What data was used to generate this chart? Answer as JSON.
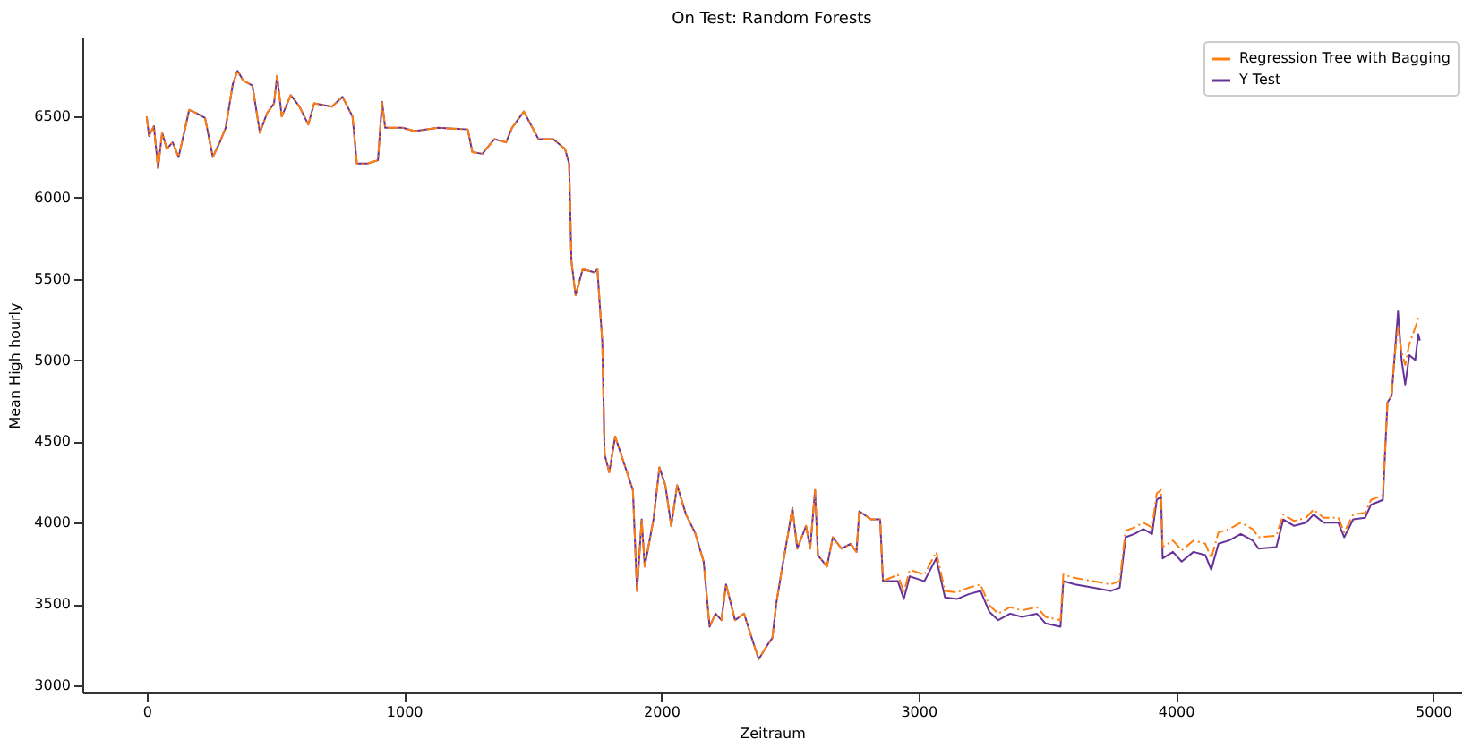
{
  "chart_data": {
    "type": "line",
    "title": "On Test: Random Forests",
    "xlabel": "Zeitraum",
    "ylabel": "Mean High hourly",
    "x": [
      0,
      9,
      28,
      44,
      60,
      78,
      101,
      124,
      147,
      165,
      193,
      227,
      257,
      284,
      307,
      335,
      353,
      376,
      411,
      440,
      468,
      495,
      507,
      525,
      560,
      594,
      628,
      651,
      720,
      761,
      800,
      817,
      858,
      899,
      915,
      927,
      995,
      1041,
      1133,
      1248,
      1266,
      1305,
      1351,
      1397,
      1420,
      1466,
      1523,
      1580,
      1626,
      1642,
      1651,
      1667,
      1695,
      1741,
      1752,
      1771,
      1780,
      1798,
      1821,
      1844,
      1867,
      1890,
      1906,
      1924,
      1936,
      1970,
      1993,
      2016,
      2039,
      2062,
      2096,
      2131,
      2165,
      2188,
      2211,
      2234,
      2252,
      2287,
      2322,
      2356,
      2379,
      2414,
      2432,
      2448,
      2471,
      2494,
      2510,
      2529,
      2563,
      2579,
      2598,
      2609,
      2644,
      2667,
      2701,
      2736,
      2759,
      2770,
      2816,
      2851,
      2862,
      2920,
      2943,
      2966,
      3023,
      3069,
      3103,
      3149,
      3195,
      3241,
      3276,
      3310,
      3356,
      3402,
      3460,
      3494,
      3552,
      3563,
      3609,
      3678,
      3747,
      3782,
      3805,
      3839,
      3874,
      3908,
      3926,
      3943,
      3949,
      3989,
      4023,
      4069,
      4115,
      4138,
      4166,
      4207,
      4253,
      4299,
      4322,
      4391,
      4418,
      4460,
      4506,
      4536,
      4575,
      4632,
      4655,
      4690,
      4736,
      4759,
      4805,
      4823,
      4839,
      4851,
      4864,
      4878,
      4892,
      4908,
      4931,
      4943,
      4949
    ],
    "series": [
      {
        "name": "Regression Tree with Bagging",
        "color": "#ff7f0e",
        "line_style": "dashed",
        "values": [
          6500,
          6380,
          6440,
          6180,
          6400,
          6300,
          6340,
          6250,
          6410,
          6540,
          6520,
          6490,
          6250,
          6340,
          6430,
          6700,
          6780,
          6720,
          6690,
          6400,
          6520,
          6580,
          6750,
          6500,
          6630,
          6560,
          6450,
          6580,
          6560,
          6620,
          6500,
          6210,
          6210,
          6230,
          6590,
          6430,
          6430,
          6410,
          6430,
          6420,
          6280,
          6270,
          6360,
          6340,
          6430,
          6530,
          6360,
          6360,
          6300,
          6210,
          5610,
          5400,
          5560,
          5540,
          5560,
          5110,
          4420,
          4310,
          4530,
          4420,
          4310,
          4200,
          3580,
          4020,
          3730,
          4020,
          4340,
          4230,
          3980,
          4230,
          4050,
          3940,
          3760,
          3360,
          3440,
          3400,
          3620,
          3400,
          3440,
          3270,
          3160,
          3250,
          3290,
          3510,
          3730,
          3940,
          4090,
          3840,
          3980,
          3840,
          4200,
          3800,
          3730,
          3910,
          3840,
          3870,
          3820,
          4070,
          4020,
          4020,
          3640,
          3680,
          3570,
          3710,
          3680,
          3820,
          3580,
          3570,
          3600,
          3620,
          3490,
          3440,
          3480,
          3460,
          3480,
          3420,
          3400,
          3680,
          3660,
          3640,
          3620,
          3640,
          3950,
          3970,
          4000,
          3970,
          4180,
          4200,
          3850,
          3890,
          3830,
          3890,
          3870,
          3780,
          3940,
          3960,
          4000,
          3960,
          3910,
          3920,
          4050,
          4010,
          4030,
          4080,
          4030,
          4030,
          3940,
          4050,
          4060,
          4140,
          4170,
          4740,
          4780,
          5030,
          5200,
          5050,
          4970,
          5100,
          5200,
          5260,
          5280
        ]
      },
      {
        "name": "Y Test",
        "color": "#663399",
        "line_style": "solid",
        "values": [
          6500,
          6380,
          6440,
          6180,
          6400,
          6300,
          6340,
          6250,
          6410,
          6540,
          6520,
          6490,
          6250,
          6340,
          6430,
          6700,
          6780,
          6720,
          6690,
          6400,
          6520,
          6580,
          6750,
          6500,
          6630,
          6560,
          6450,
          6580,
          6560,
          6620,
          6500,
          6210,
          6210,
          6230,
          6590,
          6430,
          6430,
          6410,
          6430,
          6420,
          6280,
          6270,
          6360,
          6340,
          6430,
          6530,
          6360,
          6360,
          6300,
          6210,
          5610,
          5400,
          5560,
          5540,
          5560,
          5110,
          4420,
          4310,
          4530,
          4420,
          4310,
          4200,
          3580,
          4020,
          3730,
          4020,
          4340,
          4230,
          3980,
          4230,
          4050,
          3940,
          3760,
          3360,
          3440,
          3400,
          3620,
          3400,
          3440,
          3270,
          3160,
          3250,
          3290,
          3510,
          3730,
          3940,
          4090,
          3840,
          3980,
          3840,
          4200,
          3800,
          3730,
          3910,
          3840,
          3870,
          3820,
          4070,
          4020,
          4020,
          3640,
          3640,
          3530,
          3670,
          3640,
          3780,
          3540,
          3530,
          3560,
          3580,
          3450,
          3400,
          3440,
          3420,
          3440,
          3380,
          3360,
          3640,
          3620,
          3600,
          3580,
          3600,
          3910,
          3930,
          3960,
          3930,
          4140,
          4160,
          3780,
          3820,
          3760,
          3820,
          3800,
          3710,
          3870,
          3890,
          3930,
          3890,
          3840,
          3850,
          4020,
          3980,
          4000,
          4050,
          4000,
          4000,
          3910,
          4020,
          4030,
          4110,
          4140,
          4740,
          4780,
          5030,
          5300,
          5000,
          4850,
          5030,
          5000,
          5160,
          5120
        ]
      }
    ],
    "xlim": [
      -250,
      5110
    ],
    "ylim": [
      2955,
      6985
    ],
    "xticks": [
      0,
      1000,
      2000,
      3000,
      4000,
      5000
    ],
    "yticks": [
      3000,
      3500,
      4000,
      4500,
      5000,
      5500,
      6000,
      6500
    ],
    "grid": false,
    "legend": "top right",
    "marker": "none"
  }
}
